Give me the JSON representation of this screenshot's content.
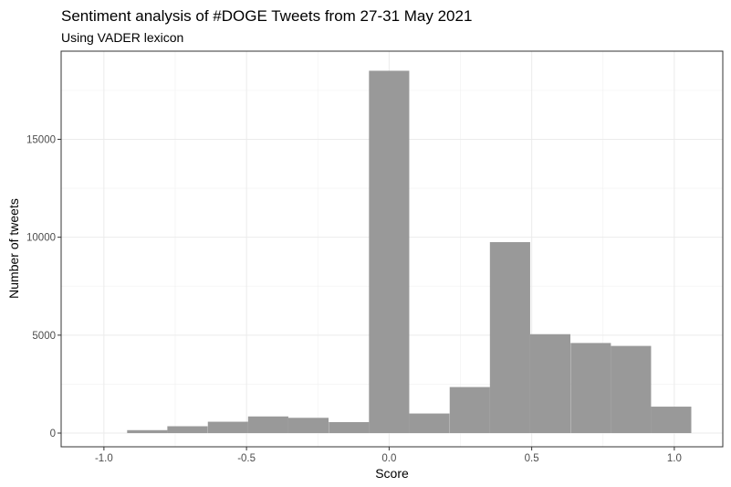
{
  "chart_data": {
    "type": "bar",
    "title": "Sentiment analysis of #DOGE Tweets from 27-31 May 2021",
    "subtitle": "Using VADER lexicon",
    "xlabel": "Score",
    "ylabel": "Number of tweets",
    "xlim": [
      -1.15,
      1.17
    ],
    "ylim": [
      -700,
      19500
    ],
    "x_ticks": [
      -1.0,
      -0.5,
      0.0,
      0.5,
      1.0
    ],
    "x_tick_labels": [
      "-1.0",
      "-0.5",
      "0.0",
      "0.5",
      "1.0"
    ],
    "y_ticks": [
      0,
      5000,
      10000,
      15000
    ],
    "y_tick_labels": [
      "0",
      "5000",
      "10000",
      "15000"
    ],
    "bin_width": 0.1412,
    "bins": [
      {
        "x": -0.848,
        "count": 150
      },
      {
        "x": -0.707,
        "count": 350
      },
      {
        "x": -0.565,
        "count": 580
      },
      {
        "x": -0.424,
        "count": 850
      },
      {
        "x": -0.283,
        "count": 780
      },
      {
        "x": -0.141,
        "count": 560
      },
      {
        "x": 0.0,
        "count": 18500
      },
      {
        "x": 0.141,
        "count": 1000
      },
      {
        "x": 0.283,
        "count": 2350
      },
      {
        "x": 0.424,
        "count": 9750
      },
      {
        "x": 0.565,
        "count": 5050
      },
      {
        "x": 0.707,
        "count": 4600
      },
      {
        "x": 0.848,
        "count": 4450
      },
      {
        "x": 0.989,
        "count": 1350
      }
    ],
    "bar_color": "#999999",
    "grid": true,
    "legend": "none"
  }
}
